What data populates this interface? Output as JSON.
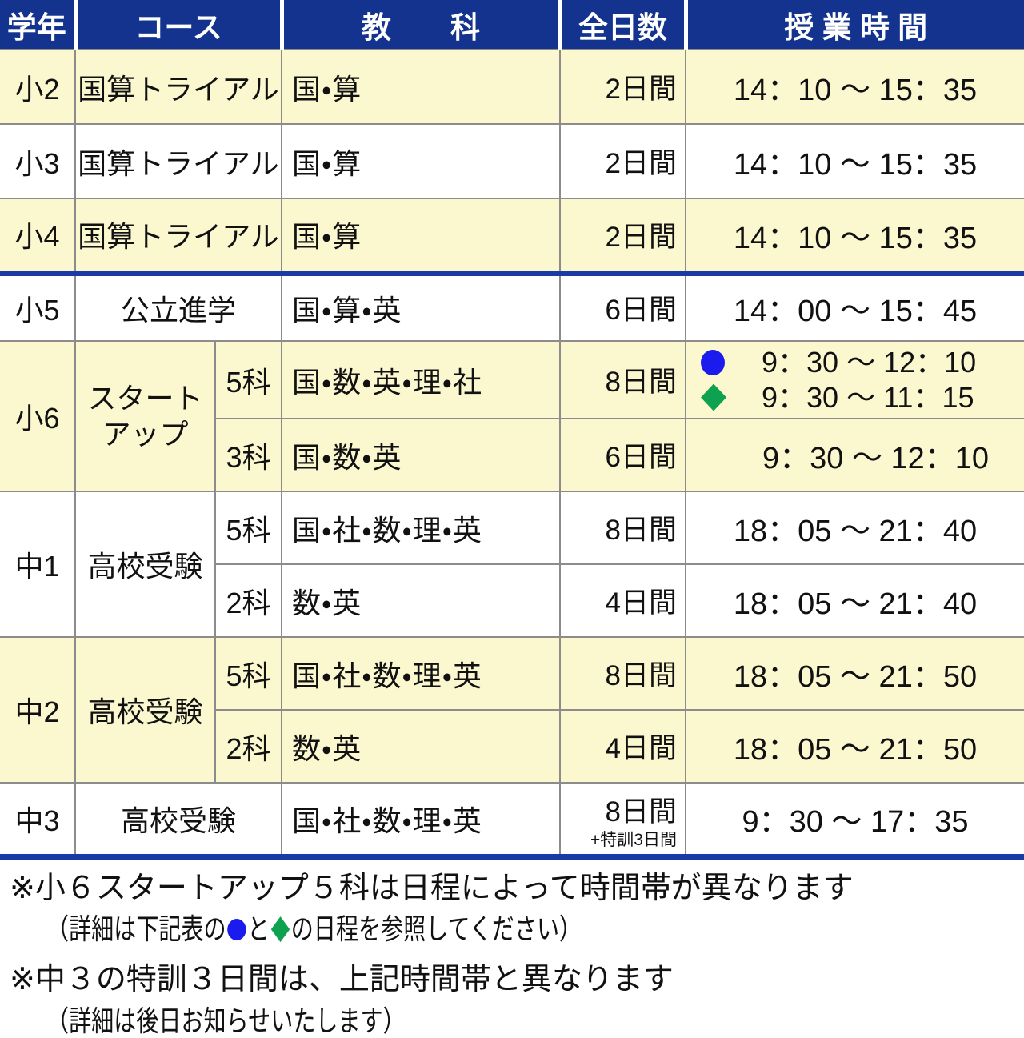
{
  "colors": {
    "header_bg": "#13338f",
    "header_text": "#ffffff",
    "row_yellow": "#fbf8d0",
    "row_white": "#ffffff",
    "divider_blue": "#1a3ba5",
    "grid_gray": "#8c8c8c",
    "text_color": "#111111",
    "marker_blue": "#1b1bee",
    "marker_green": "#0ea150"
  },
  "table": {
    "headers": {
      "grade": "学年",
      "course": "コース",
      "subject": "教　　科",
      "days": "全日数",
      "time": "授 業 時 間"
    },
    "rows": [
      {
        "grade": "小2",
        "course": "国算トライアル",
        "subjects": "国・算",
        "days": "2日間",
        "time": "14：10 ～ 15：35"
      },
      {
        "grade": "小3",
        "course": "国算トライアル",
        "subjects": "国・算",
        "days": "2日間",
        "time": "14：10 ～ 15：35"
      },
      {
        "grade": "小4",
        "course": "国算トライアル",
        "subjects": "国・算",
        "days": "2日間",
        "time": "14：10 ～ 15：35"
      },
      {
        "grade": "小5",
        "course": "公立進学",
        "subjects": "国・算・英",
        "days": "6日間",
        "time": "14：00 ～ 15：45"
      },
      {
        "grade": "小6",
        "course": "スタート\nアップ",
        "sub": "5科",
        "subjects": "国・数・英・理・社",
        "days": "8日間",
        "time_circle": "9：30 ～ 12：10",
        "time_diamond": "9：30 ～ 11：15"
      },
      {
        "sub": "3科",
        "subjects": "国・数・英",
        "days": "6日間",
        "time": "9：30 ～ 12：10"
      },
      {
        "grade": "中1",
        "course": "高校受験",
        "sub": "5科",
        "subjects": "国・社・数・理・英",
        "days": "8日間",
        "time": "18：05 ～ 21：40"
      },
      {
        "sub": "2科",
        "subjects": "数・英",
        "days": "4日間",
        "time": "18：05 ～ 21：40"
      },
      {
        "grade": "中2",
        "course": "高校受験",
        "sub": "5科",
        "subjects": "国・社・数・理・英",
        "days": "8日間",
        "time": "18：05 ～ 21：50"
      },
      {
        "sub": "2科",
        "subjects": "数・英",
        "days": "4日間",
        "time": "18：05 ～ 21：50"
      },
      {
        "grade": "中3",
        "course": "高校受験",
        "subjects": "国・社・数・理・英",
        "days": "8日間",
        "days_note": "+特訓3日間",
        "time": "9：30 ～ 17：35"
      }
    ]
  },
  "notes": {
    "note1": "※小６スタートアップ５科は日程によって時間帯が異なります",
    "note2_prefix": "（詳細は下記表の",
    "note2_mid": "と",
    "note2_suffix": "の日程を参照してください）",
    "note3": "※中３の特訓３日間は、上記時間帯と異なります",
    "note4": "（詳細は後日お知らせいたします）"
  }
}
